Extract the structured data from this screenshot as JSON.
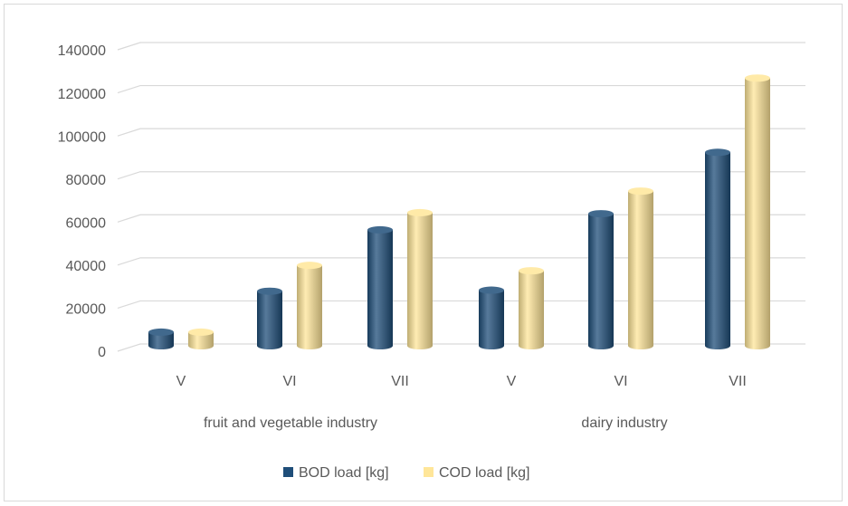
{
  "chart_data": {
    "type": "bar",
    "categories": [
      "V",
      "VI",
      "VII",
      "V",
      "VI",
      "VII"
    ],
    "groups": [
      "fruit and vegetable industry",
      "dairy industry"
    ],
    "series": [
      {
        "name": "BOD load [kg]",
        "color": "#1f4e79",
        "values": [
          5500,
          24500,
          53000,
          25000,
          60500,
          89000
        ]
      },
      {
        "name": "COD load [kg]",
        "color": "#ffe699",
        "values": [
          5500,
          36500,
          61000,
          34000,
          71000,
          123500
        ]
      }
    ],
    "ylim": [
      0,
      140000
    ],
    "yticks": [
      0,
      20000,
      40000,
      60000,
      80000,
      100000,
      120000,
      140000
    ],
    "grid": true,
    "legend": "bottom"
  }
}
